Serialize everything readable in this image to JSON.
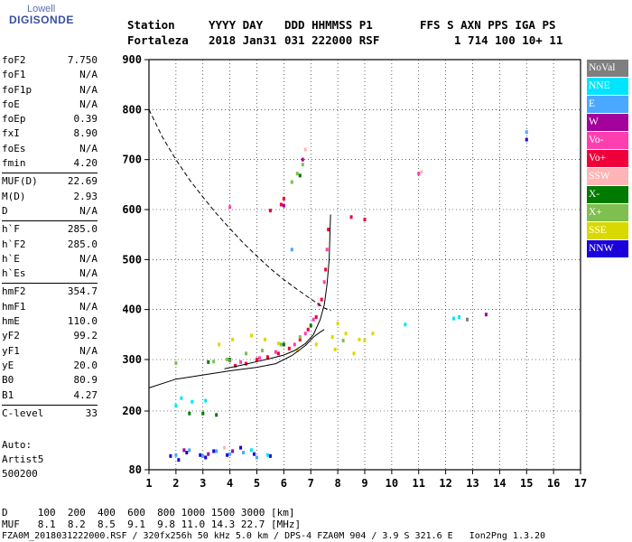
{
  "logo": {
    "line1": "Lowell",
    "line2": "DIGISONDE"
  },
  "header": {
    "row1": [
      "Station",
      "YYYY DAY",
      "DDD HHMMSS P1",
      "FFS S AXN PPS IGA PS"
    ],
    "row2": [
      "Fortaleza",
      "2018 Jan31",
      "031 222000 RSF",
      "1 714 100 10+ 11"
    ]
  },
  "params": {
    "group1": [
      {
        "name": "foF2",
        "value": "7.750"
      },
      {
        "name": "foF1",
        "value": "N/A"
      },
      {
        "name": "foF1p",
        "value": "N/A"
      },
      {
        "name": "foE",
        "value": "N/A"
      },
      {
        "name": "foEp",
        "value": "0.39"
      },
      {
        "name": "fxI",
        "value": "8.90"
      },
      {
        "name": "foEs",
        "value": "N/A"
      },
      {
        "name": "fmin",
        "value": "4.20"
      }
    ],
    "group2": [
      {
        "name": "MUF(D)",
        "value": "22.69"
      },
      {
        "name": "M(D)",
        "value": "2.93"
      },
      {
        "name": "D",
        "value": "N/A"
      }
    ],
    "group3": [
      {
        "name": "h`F",
        "value": "285.0"
      },
      {
        "name": "h`F2",
        "value": "285.0"
      },
      {
        "name": "h`E",
        "value": "N/A"
      },
      {
        "name": "h`Es",
        "value": "N/A"
      }
    ],
    "group4": [
      {
        "name": "hmF2",
        "value": "354.7"
      },
      {
        "name": "hmF1",
        "value": "N/A"
      },
      {
        "name": "hmE",
        "value": "110.0"
      },
      {
        "name": "yF2",
        "value": "99.2"
      },
      {
        "name": "yF1",
        "value": "N/A"
      },
      {
        "name": "yE",
        "value": "20.0"
      },
      {
        "name": "B0",
        "value": "80.9"
      },
      {
        "name": "B1",
        "value": "4.27"
      }
    ],
    "group5": [
      {
        "name": "C-level",
        "value": "33"
      }
    ]
  },
  "auto": {
    "line1": "Auto:",
    "line2": "Artist5",
    "line3": "500200"
  },
  "legend": [
    {
      "label": "NoVal",
      "color": "#7f7f7f"
    },
    {
      "label": "NNE",
      "color": "#00e5ff"
    },
    {
      "label": "E",
      "color": "#4aa8ff"
    },
    {
      "label": "W",
      "color": "#a4009b"
    },
    {
      "label": "Vo-",
      "color": "#ff3fb0"
    },
    {
      "label": "Vo+",
      "color": "#f0003a"
    },
    {
      "label": "SSW",
      "color": "#ffb5b5"
    },
    {
      "label": "X-",
      "color": "#007a00"
    },
    {
      "label": "X+",
      "color": "#7fbf4f"
    },
    {
      "label": "SSE",
      "color": "#d9d900"
    },
    {
      "label": "NNW",
      "color": "#1a00d9"
    }
  ],
  "footer": {
    "line1": "D     100  200  400  600  800 1000 1500 3000 [km]",
    "line2": "MUF   8.1  8.2  8.5  9.1  9.8 11.0 14.3 22.7 [MHz]",
    "line3": "FZA0M_2018031222000.RSF / 320fx256h 50 kHz 5.0 km / DPS-4 FZA0M 904 / 3.9 S 321.6 E   Ion2Png 1.3.20"
  },
  "chart_data": {
    "type": "scatter",
    "xlim": [
      1,
      17
    ],
    "ylim": [
      80,
      900
    ],
    "x_ticks": [
      1,
      2,
      3,
      4,
      5,
      6,
      7,
      8,
      9,
      10,
      11,
      12,
      13,
      14,
      15,
      16,
      17
    ],
    "y_ticks": [
      80,
      200,
      300,
      400,
      500,
      600,
      700,
      800,
      900
    ],
    "grid": true,
    "xlabel": "",
    "ylabel": "",
    "series": [
      {
        "name": "Vo+",
        "color": "#f0003a",
        "points": [
          [
            4.2,
            288
          ],
          [
            4.6,
            292
          ],
          [
            5.0,
            300
          ],
          [
            5.4,
            305
          ],
          [
            5.8,
            312
          ],
          [
            6.2,
            322
          ],
          [
            6.6,
            340
          ],
          [
            6.9,
            360
          ],
          [
            7.2,
            385
          ],
          [
            7.4,
            420
          ],
          [
            7.55,
            480
          ],
          [
            7.65,
            560
          ],
          [
            5.5,
            598
          ],
          [
            5.9,
            610
          ],
          [
            6.0,
            622
          ],
          [
            8.5,
            585
          ],
          [
            9.0,
            580
          ]
        ]
      },
      {
        "name": "Vo-",
        "color": "#ff3fb0",
        "points": [
          [
            4.4,
            295
          ],
          [
            5.1,
            303
          ],
          [
            5.7,
            315
          ],
          [
            6.4,
            330
          ],
          [
            6.8,
            352
          ],
          [
            7.1,
            380
          ],
          [
            7.3,
            410
          ],
          [
            7.5,
            455
          ],
          [
            7.6,
            520
          ],
          [
            4.0,
            605
          ],
          [
            11.0,
            672
          ]
        ]
      },
      {
        "name": "SSE",
        "color": "#d9d900",
        "points": [
          [
            3.6,
            330
          ],
          [
            4.1,
            340
          ],
          [
            4.8,
            348
          ],
          [
            5.3,
            340
          ],
          [
            5.8,
            332
          ],
          [
            6.5,
            318
          ],
          [
            7.2,
            330
          ],
          [
            7.8,
            345
          ],
          [
            8.3,
            352
          ],
          [
            8.8,
            340
          ],
          [
            9.3,
            352
          ],
          [
            7.9,
            320
          ],
          [
            8.6,
            312
          ],
          [
            8.0,
            372
          ],
          [
            9.0,
            338
          ]
        ]
      },
      {
        "name": "X+",
        "color": "#7fbf4f",
        "points": [
          [
            3.4,
            296
          ],
          [
            3.9,
            300
          ],
          [
            4.6,
            312
          ],
          [
            5.2,
            318
          ],
          [
            5.9,
            330
          ],
          [
            6.6,
            345
          ],
          [
            6.3,
            655
          ],
          [
            6.7,
            690
          ],
          [
            6.5,
            672
          ],
          [
            8.2,
            338
          ],
          [
            2.0,
            293
          ]
        ]
      },
      {
        "name": "X-",
        "color": "#007a00",
        "points": [
          [
            3.2,
            295
          ],
          [
            4.0,
            300
          ],
          [
            6.0,
            330
          ],
          [
            7.0,
            368
          ],
          [
            6.6,
            668
          ],
          [
            2.5,
            195
          ],
          [
            3.0,
            195
          ],
          [
            3.5,
            192
          ]
        ]
      },
      {
        "name": "NNE",
        "color": "#00e5ff",
        "points": [
          [
            2.2,
            225
          ],
          [
            2.6,
            218
          ],
          [
            3.1,
            220
          ],
          [
            12.5,
            385
          ],
          [
            12.3,
            382
          ],
          [
            10.5,
            370
          ],
          [
            4.8,
            120
          ],
          [
            5.4,
            110
          ],
          [
            2.0,
            210
          ]
        ]
      },
      {
        "name": "E",
        "color": "#4aa8ff",
        "points": [
          [
            2.0,
            110
          ],
          [
            2.5,
            120
          ],
          [
            3.0,
            108
          ],
          [
            3.5,
            118
          ],
          [
            4.0,
            112
          ],
          [
            4.5,
            115
          ],
          [
            5.0,
            105
          ],
          [
            6.3,
            520
          ],
          [
            15.0,
            755
          ]
        ]
      },
      {
        "name": "W",
        "color": "#a4009b",
        "points": [
          [
            2.3,
            120
          ],
          [
            3.2,
            112
          ],
          [
            4.1,
            118
          ],
          [
            13.5,
            390
          ],
          [
            6.7,
            700
          ],
          [
            6.0,
            608
          ]
        ]
      },
      {
        "name": "SSW",
        "color": "#ffb5b5",
        "points": [
          [
            11.1,
            675
          ],
          [
            3.8,
            125
          ],
          [
            6.8,
            720
          ]
        ]
      },
      {
        "name": "NNW",
        "color": "#1a00d9",
        "points": [
          [
            1.8,
            108
          ],
          [
            2.4,
            115
          ],
          [
            2.9,
            110
          ],
          [
            3.4,
            118
          ],
          [
            3.9,
            110
          ],
          [
            4.4,
            125
          ],
          [
            4.9,
            112
          ],
          [
            5.5,
            108
          ],
          [
            15.0,
            740
          ],
          [
            2.1,
            100
          ],
          [
            3.1,
            105
          ]
        ]
      },
      {
        "name": "NoVal",
        "color": "#7f7f7f",
        "points": [
          [
            12.8,
            380
          ],
          [
            4.0,
            298
          ]
        ]
      }
    ],
    "curves": [
      {
        "kind": "profile",
        "style": "solid",
        "points": [
          [
            3.8,
            282
          ],
          [
            4.5,
            290
          ],
          [
            5.0,
            296
          ],
          [
            5.5,
            302
          ],
          [
            6.0,
            309
          ],
          [
            6.4,
            318
          ],
          [
            6.8,
            332
          ],
          [
            7.1,
            350
          ],
          [
            7.35,
            380
          ],
          [
            7.5,
            410
          ],
          [
            7.6,
            450
          ],
          [
            7.68,
            500
          ],
          [
            7.73,
            590
          ]
        ]
      },
      {
        "kind": "profile",
        "style": "solid",
        "points": [
          [
            1.0,
            245
          ],
          [
            2.0,
            262
          ],
          [
            3.0,
            270
          ],
          [
            4.0,
            278
          ],
          [
            5.0,
            285
          ],
          [
            5.7,
            292
          ],
          [
            6.3,
            308
          ],
          [
            6.8,
            328
          ],
          [
            7.1,
            345
          ],
          [
            7.35,
            355
          ],
          [
            7.5,
            360
          ]
        ]
      },
      {
        "kind": "muf",
        "style": "dashed",
        "points": [
          [
            1.0,
            800
          ],
          [
            1.5,
            745
          ],
          [
            2.0,
            700
          ],
          [
            2.5,
            660
          ],
          [
            3.0,
            625
          ],
          [
            3.5,
            592
          ],
          [
            4.0,
            562
          ],
          [
            4.5,
            533
          ],
          [
            5.0,
            507
          ],
          [
            5.5,
            482
          ],
          [
            6.0,
            460
          ],
          [
            6.5,
            440
          ],
          [
            7.0,
            421
          ],
          [
            7.3,
            410
          ],
          [
            7.5,
            403
          ],
          [
            7.75,
            398
          ]
        ]
      }
    ]
  }
}
